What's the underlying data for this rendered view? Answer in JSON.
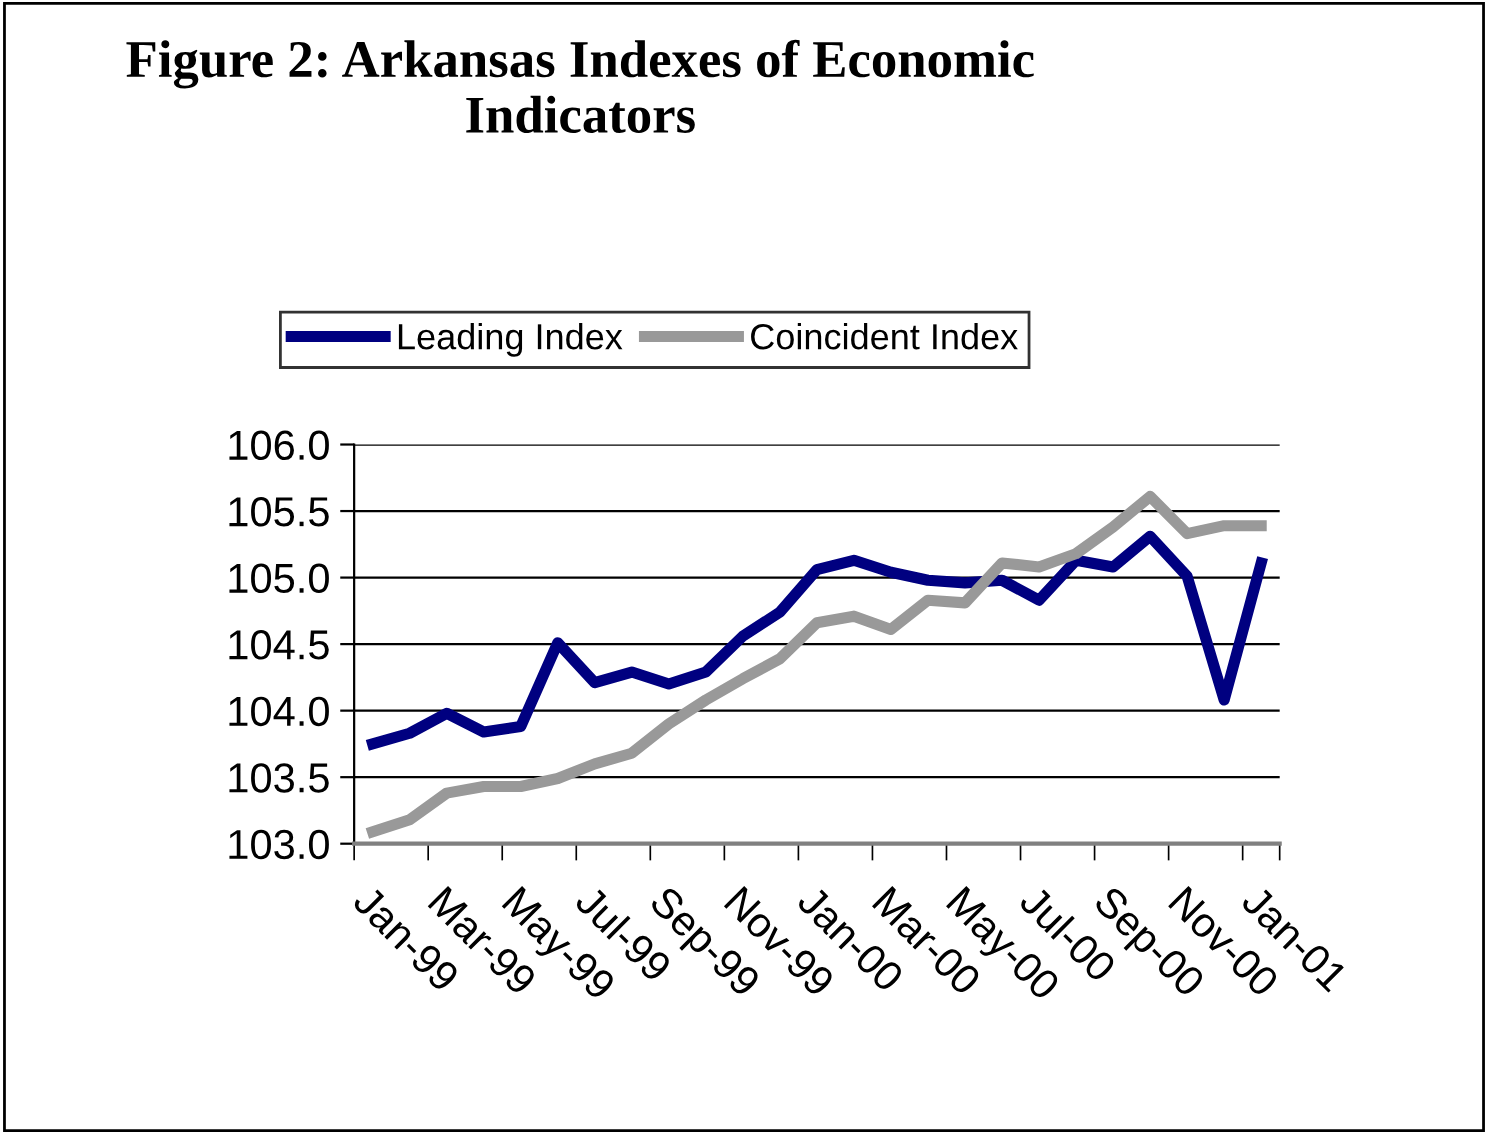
{
  "chart_data": {
    "type": "line",
    "title": "Figure 2: Arkansas Indexes of Economic\nIndicators",
    "categories": [
      "Jan-99",
      null,
      "Mar-99",
      null,
      "May-99",
      null,
      "Jul-99",
      null,
      "Sep-99",
      null,
      "Nov-99",
      null,
      "Jan-00",
      null,
      "Mar-00",
      null,
      "May-00",
      null,
      "Jul-00",
      null,
      "Sep-00",
      null,
      "Nov-00",
      null,
      "Jan-01"
    ],
    "series": [
      {
        "name": "Leading Index",
        "color": "#000080",
        "values": [
          103.75,
          103.83,
          103.98,
          103.84,
          103.88,
          104.51,
          104.21,
          104.29,
          104.2,
          104.29,
          104.56,
          104.74,
          105.06,
          105.13,
          105.04,
          104.98,
          104.96,
          104.98,
          104.83,
          105.13,
          105.08,
          105.31,
          105.01,
          104.08,
          105.11
        ]
      },
      {
        "name": "Coincident Index",
        "color": "#999999",
        "values": [
          103.09,
          103.18,
          103.38,
          103.43,
          103.43,
          103.49,
          103.6,
          103.68,
          103.9,
          104.08,
          104.24,
          104.39,
          104.66,
          104.71,
          104.61,
          104.83,
          104.81,
          105.11,
          105.08,
          105.18,
          105.38,
          105.61,
          105.33,
          105.39,
          105.39
        ]
      }
    ],
    "ylim": [
      103.0,
      106.0
    ],
    "yticks": [
      {
        "value": 103.0,
        "label": "103.0"
      },
      {
        "value": 103.5,
        "label": "103.5"
      },
      {
        "value": 104.0,
        "label": "104.0"
      },
      {
        "value": 104.5,
        "label": "104.5"
      },
      {
        "value": 105.0,
        "label": "105.0"
      },
      {
        "value": 105.5,
        "label": "105.5"
      },
      {
        "value": 106.0,
        "label": "106.0"
      }
    ],
    "grid": "y",
    "legend": "top",
    "marker": "none",
    "line_style": "solid"
  }
}
